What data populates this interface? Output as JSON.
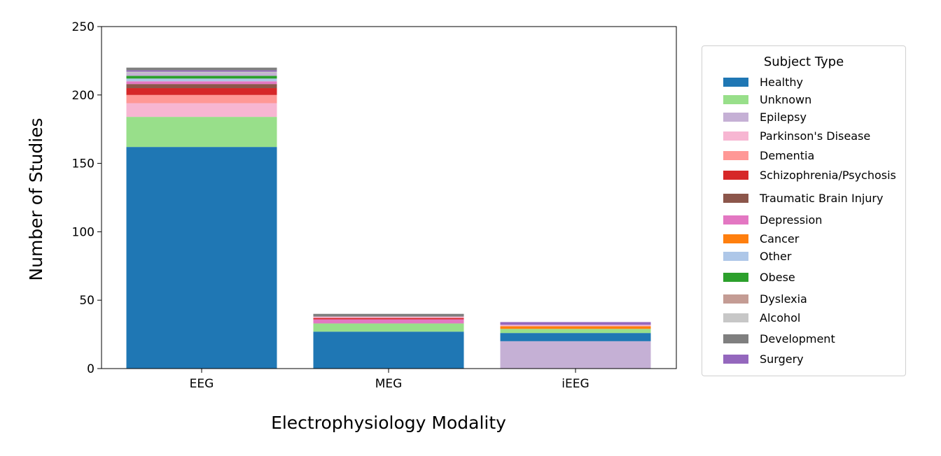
{
  "chart_data": {
    "type": "bar",
    "stacked": true,
    "title": "",
    "xlabel": "Electrophysiology Modality",
    "ylabel": "Number of Studies",
    "ylim": [
      0,
      250
    ],
    "yticks": [
      0,
      50,
      100,
      150,
      200,
      250
    ],
    "grid": false,
    "categories": [
      "EEG",
      "MEG",
      "iEEG"
    ],
    "legend": {
      "title": "Subject Type",
      "placement": "right",
      "entries": [
        {
          "name": "Healthy",
          "color": "#1f77b4"
        },
        {
          "name": "Unknown",
          "color": "#98df8a"
        },
        {
          "name": "Epilepsy",
          "color": "#c5b0d5"
        },
        {
          "name": "Parkinson's Disease",
          "color": "#f7b6d2"
        },
        {
          "name": "Dementia",
          "color": "#ff9896"
        },
        {
          "name": "Schizophrenia/Psychosis",
          "color": "#d62728"
        },
        {
          "name": "Traumatic Brain Injury",
          "color": "#8c564b"
        },
        {
          "name": "Depression",
          "color": "#e377c2"
        },
        {
          "name": "Cancer",
          "color": "#ff7f0e"
        },
        {
          "name": "Other",
          "color": "#aec7e8"
        },
        {
          "name": "Obese",
          "color": "#2ca02c"
        },
        {
          "name": "Dyslexia",
          "color": "#c49c94"
        },
        {
          "name": "Alcohol",
          "color": "#c7c7c7"
        },
        {
          "name": "Development",
          "color": "#7f7f7f"
        },
        {
          "name": "Surgery",
          "color": "#9467bd"
        }
      ]
    },
    "stacks": [
      {
        "category": "EEG",
        "segments": [
          {
            "name": "Healthy",
            "value": 162
          },
          {
            "name": "Unknown",
            "value": 22
          },
          {
            "name": "Parkinson's Disease",
            "value": 10
          },
          {
            "name": "Dementia",
            "value": 6
          },
          {
            "name": "Schizophrenia/Psychosis",
            "value": 5
          },
          {
            "name": "Traumatic Brain Injury",
            "value": 3
          },
          {
            "name": "Depression",
            "value": 2
          },
          {
            "name": "Other",
            "value": 2
          },
          {
            "name": "Obese",
            "value": 2
          },
          {
            "name": "Epilepsy",
            "value": 2
          },
          {
            "name": "Alcohol",
            "value": 1
          },
          {
            "name": "Surgery",
            "value": 1
          },
          {
            "name": "Development",
            "value": 2
          }
        ]
      },
      {
        "category": "MEG",
        "segments": [
          {
            "name": "Healthy",
            "value": 27
          },
          {
            "name": "Unknown",
            "value": 6
          },
          {
            "name": "Depression",
            "value": 3
          },
          {
            "name": "Schizophrenia/Psychosis",
            "value": 1
          },
          {
            "name": "Parkinson's Disease",
            "value": 1
          },
          {
            "name": "Development",
            "value": 2
          }
        ]
      },
      {
        "category": "iEEG",
        "segments": [
          {
            "name": "Epilepsy",
            "value": 20
          },
          {
            "name": "Healthy",
            "value": 6
          },
          {
            "name": "Unknown",
            "value": 3
          },
          {
            "name": "Cancer",
            "value": 2
          },
          {
            "name": "Parkinson's Disease",
            "value": 1
          },
          {
            "name": "Surgery",
            "value": 2
          }
        ]
      }
    ]
  }
}
